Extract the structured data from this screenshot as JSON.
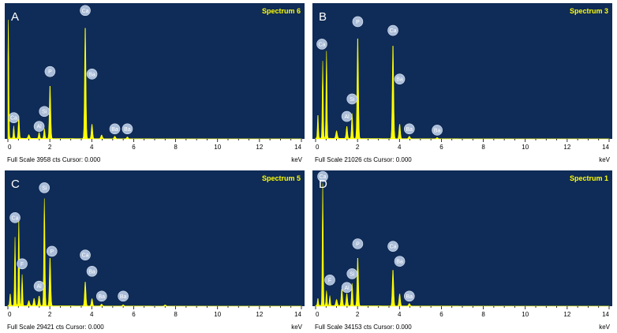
{
  "chart_data": [
    {
      "type": "area",
      "panel_letter": "A",
      "title": "Spectrum 6",
      "xlabel": "keV",
      "xlim": [
        0,
        14
      ],
      "x_ticks": [
        "0",
        "2",
        "4",
        "6",
        "8",
        "10",
        "12",
        "14"
      ],
      "full_scale_text": "Full Scale 3958 cts Cursor: 0.000",
      "full_scale_cts": 3958,
      "peaks": [
        {
          "x": 0.02,
          "y": 0.95,
          "w": 0.05
        },
        {
          "x": 0.28,
          "y": 0.1,
          "w": 0.05
        },
        {
          "x": 0.52,
          "y": 0.18,
          "w": 0.06
        },
        {
          "x": 1.0,
          "y": 0.03,
          "w": 0.08
        },
        {
          "x": 1.49,
          "y": 0.05,
          "w": 0.06
        },
        {
          "x": 1.74,
          "y": 0.08,
          "w": 0.06
        },
        {
          "x": 2.01,
          "y": 0.44,
          "w": 0.07
        },
        {
          "x": 3.69,
          "y": 0.93,
          "w": 0.07
        },
        {
          "x": 4.01,
          "y": 0.12,
          "w": 0.07
        },
        {
          "x": 4.47,
          "y": 0.03,
          "w": 0.08
        },
        {
          "x": 5.1,
          "y": 0.02,
          "w": 0.08
        },
        {
          "x": 5.7,
          "y": 0.015,
          "w": 0.08
        }
      ],
      "labels": [
        {
          "text": "Ca",
          "x": 3.69,
          "y": 1.03
        },
        {
          "text": "P",
          "x": 2.01,
          "y": 0.54
        },
        {
          "text": "Ba",
          "x": 4.01,
          "y": 0.52
        },
        {
          "text": "Si",
          "x": 1.74,
          "y": 0.22
        },
        {
          "text": "Ca",
          "x": 0.28,
          "y": 0.17
        },
        {
          "text": "Al",
          "x": 1.49,
          "y": 0.1
        },
        {
          "text": "Ba",
          "x": 5.1,
          "y": 0.08
        },
        {
          "text": "Ba",
          "x": 5.7,
          "y": 0.08
        }
      ]
    },
    {
      "type": "area",
      "panel_letter": "B",
      "title": "Spectrum 3",
      "xlabel": "keV",
      "xlim": [
        0,
        14
      ],
      "x_ticks": [
        "0",
        "2",
        "4",
        "6",
        "8",
        "10",
        "12",
        "14"
      ],
      "full_scale_text": "Full Scale 21026 cts Cursor: 0.000",
      "full_scale_cts": 21026,
      "peaks": [
        {
          "x": 0.11,
          "y": 0.2,
          "w": 0.05
        },
        {
          "x": 0.34,
          "y": 0.62,
          "w": 0.05
        },
        {
          "x": 0.52,
          "y": 0.7,
          "w": 0.05
        },
        {
          "x": 1.0,
          "y": 0.06,
          "w": 0.08
        },
        {
          "x": 1.49,
          "y": 0.1,
          "w": 0.07
        },
        {
          "x": 1.74,
          "y": 0.2,
          "w": 0.06
        },
        {
          "x": 2.01,
          "y": 0.84,
          "w": 0.07
        },
        {
          "x": 3.69,
          "y": 0.78,
          "w": 0.07
        },
        {
          "x": 4.01,
          "y": 0.12,
          "w": 0.07
        },
        {
          "x": 4.47,
          "y": 0.02,
          "w": 0.08
        },
        {
          "x": 5.8,
          "y": 0.01,
          "w": 0.08
        }
      ],
      "labels": [
        {
          "text": "P",
          "x": 2.01,
          "y": 0.94
        },
        {
          "text": "Ca",
          "x": 3.69,
          "y": 0.87
        },
        {
          "text": "Ca",
          "x": 0.3,
          "y": 0.76
        },
        {
          "text": "Ba",
          "x": 4.01,
          "y": 0.48
        },
        {
          "text": "Si",
          "x": 1.74,
          "y": 0.32
        },
        {
          "text": "Al",
          "x": 1.49,
          "y": 0.18
        },
        {
          "text": "Ba",
          "x": 4.47,
          "y": 0.08
        },
        {
          "text": "Ba",
          "x": 5.8,
          "y": 0.07
        }
      ]
    },
    {
      "type": "area",
      "panel_letter": "C",
      "title": "Spectrum 5",
      "xlabel": "keV",
      "xlim": [
        0,
        14
      ],
      "x_ticks": [
        "0",
        "2",
        "4",
        "6",
        "8",
        "10",
        "12",
        "14"
      ],
      "full_scale_text": "Full Scale 29421 cts Cursor: 0.000",
      "full_scale_cts": 29421,
      "peaks": [
        {
          "x": 0.11,
          "y": 0.1,
          "w": 0.05
        },
        {
          "x": 0.34,
          "y": 0.55,
          "w": 0.05
        },
        {
          "x": 0.52,
          "y": 0.72,
          "w": 0.05
        },
        {
          "x": 0.68,
          "y": 0.25,
          "w": 0.05
        },
        {
          "x": 1.0,
          "y": 0.04,
          "w": 0.08
        },
        {
          "x": 1.25,
          "y": 0.06,
          "w": 0.07
        },
        {
          "x": 1.49,
          "y": 0.08,
          "w": 0.07
        },
        {
          "x": 1.74,
          "y": 0.86,
          "w": 0.06
        },
        {
          "x": 2.01,
          "y": 0.4,
          "w": 0.07
        },
        {
          "x": 3.69,
          "y": 0.2,
          "w": 0.07
        },
        {
          "x": 4.01,
          "y": 0.06,
          "w": 0.07
        },
        {
          "x": 4.47,
          "y": 0.015,
          "w": 0.08
        },
        {
          "x": 5.5,
          "y": 0.01,
          "w": 0.08
        },
        {
          "x": 7.5,
          "y": 0.01,
          "w": 0.08
        }
      ],
      "labels": [
        {
          "text": "Si",
          "x": 1.74,
          "y": 0.95
        },
        {
          "text": "Ca",
          "x": 0.34,
          "y": 0.71
        },
        {
          "text": "P",
          "x": 2.1,
          "y": 0.44
        },
        {
          "text": "F",
          "x": 0.68,
          "y": 0.34
        },
        {
          "text": "Ca",
          "x": 3.69,
          "y": 0.41
        },
        {
          "text": "Ba",
          "x": 4.01,
          "y": 0.28
        },
        {
          "text": "Al",
          "x": 1.49,
          "y": 0.16
        },
        {
          "text": "Ba",
          "x": 4.47,
          "y": 0.08
        },
        {
          "text": "Ba",
          "x": 5.5,
          "y": 0.08
        }
      ]
    },
    {
      "type": "area",
      "panel_letter": "D",
      "title": "Spectrum 1",
      "xlabel": "keV",
      "xlim": [
        0,
        14
      ],
      "x_ticks": [
        "0",
        "2",
        "4",
        "6",
        "8",
        "10",
        "12",
        "14"
      ],
      "full_scale_text": "Full Scale 34153 cts Cursor: 0.000",
      "full_scale_cts": 34153,
      "peaks": [
        {
          "x": 0.11,
          "y": 0.06,
          "w": 0.05
        },
        {
          "x": 0.34,
          "y": 0.98,
          "w": 0.05
        },
        {
          "x": 0.52,
          "y": 0.12,
          "w": 0.05
        },
        {
          "x": 0.68,
          "y": 0.08,
          "w": 0.05
        },
        {
          "x": 1.0,
          "y": 0.05,
          "w": 0.08
        },
        {
          "x": 1.25,
          "y": 0.14,
          "w": 0.07
        },
        {
          "x": 1.49,
          "y": 0.1,
          "w": 0.07
        },
        {
          "x": 1.74,
          "y": 0.18,
          "w": 0.06
        },
        {
          "x": 2.01,
          "y": 0.4,
          "w": 0.07
        },
        {
          "x": 3.69,
          "y": 0.3,
          "w": 0.07
        },
        {
          "x": 4.01,
          "y": 0.1,
          "w": 0.07
        },
        {
          "x": 4.47,
          "y": 0.02,
          "w": 0.08
        }
      ],
      "labels": [
        {
          "text": "Ca",
          "x": 0.34,
          "y": 1.04
        },
        {
          "text": "P",
          "x": 2.01,
          "y": 0.5
        },
        {
          "text": "Ca",
          "x": 3.69,
          "y": 0.48
        },
        {
          "text": "Ba",
          "x": 4.01,
          "y": 0.36
        },
        {
          "text": "Si",
          "x": 1.74,
          "y": 0.26
        },
        {
          "text": "F",
          "x": 0.68,
          "y": 0.21
        },
        {
          "text": "Al",
          "x": 1.49,
          "y": 0.15
        },
        {
          "text": "Ba",
          "x": 4.47,
          "y": 0.08
        }
      ]
    }
  ]
}
